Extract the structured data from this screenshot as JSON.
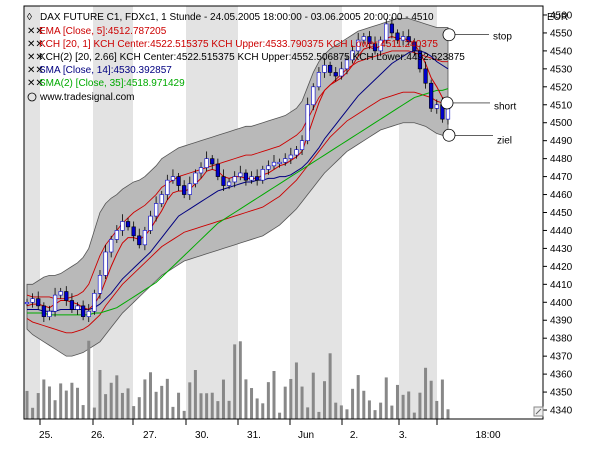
{
  "chart_data": {
    "type": "line",
    "title": "DAX FUTURE C1, FDXc1, 1 Stunde - 24.05.2005 18:00:00 - 03.06.2005 20:00:00 - 4510",
    "currency": "EUR",
    "watermark": "www.tradesignal.com",
    "legend_position": "top-left",
    "legend": [
      {
        "label": "EMA [Close, 5]:4512.787205",
        "color": "#cc0000"
      },
      {
        "label": "KCH [20, 1] KCH Center:4522.515375 KCH Upper:4533.790375 KCH Lower:4511.240375",
        "color": "#cc0000"
      },
      {
        "label": "KCH(2) [20, 2.66] KCH Center:4522.515375 KCH Upper:4552.506875 KCH Lower:4492.523875",
        "color": "#000000"
      },
      {
        "label": "SMA [Close, 14]:4530.392857",
        "color": "#000080"
      },
      {
        "label": "SMA(2) [Close, 35]:4518.971429",
        "color": "#00aa00"
      }
    ],
    "y_ticks": [
      4340,
      4350,
      4360,
      4370,
      4380,
      4390,
      4400,
      4410,
      4420,
      4430,
      4440,
      4450,
      4460,
      4470,
      4480,
      4490,
      4500,
      4510,
      4520,
      4530,
      4540,
      4550,
      4560
    ],
    "ylim": [
      4335,
      4565
    ],
    "x_ticks": [
      "25.",
      "26.",
      "27.",
      "30.",
      "31.",
      "Jun",
      "2.",
      "3.",
      "18:00"
    ],
    "grid": "off",
    "close_series": [
      4400,
      4402,
      4398,
      4392,
      4395,
      4404,
      4406,
      4401,
      4396,
      4398,
      4392,
      4395,
      4405,
      4415,
      4428,
      4435,
      4440,
      4445,
      4442,
      4437,
      4432,
      4440,
      4448,
      4455,
      4460,
      4468,
      4470,
      4465,
      4460,
      4466,
      4472,
      4475,
      4480,
      4477,
      4470,
      4465,
      4467,
      4470,
      4472,
      4468,
      4470,
      4468,
      4474,
      4476,
      4478,
      4478,
      4480,
      4482,
      4485,
      4490,
      4510,
      4520,
      4528,
      4532,
      4528,
      4526,
      4530,
      4535,
      4540,
      4546,
      4548,
      4544,
      4540,
      4546,
      4555,
      4550,
      4546,
      4548,
      4545,
      4540,
      4530,
      4522,
      4508,
      4510,
      4502,
      4510
    ],
    "ema5": [
      4398,
      4399,
      4399,
      4398,
      4397,
      4399,
      4401,
      4401,
      4400,
      4399,
      4397,
      4396,
      4399,
      4404,
      4412,
      4420,
      4427,
      4433,
      4436,
      4436,
      4435,
      4437,
      4441,
      4446,
      4451,
      4457,
      4461,
      4462,
      4462,
      4463,
      4466,
      4469,
      4473,
      4474,
      4473,
      4470,
      4469,
      4470,
      4470,
      4469,
      4469,
      4469,
      4471,
      4472,
      4474,
      4476,
      4477,
      4479,
      4481,
      4484,
      4493,
      4502,
      4511,
      4518,
      4521,
      4523,
      4525,
      4528,
      4532,
      4537,
      4541,
      4542,
      4541,
      4543,
      4547,
      4548,
      4547,
      4547,
      4546,
      4544,
      4539,
      4533,
      4525,
      4520,
      4514,
      4513
    ],
    "kch_upper_266": [
      4410,
      4410,
      4412,
      4414,
      4415,
      4415,
      4416,
      4418,
      4420,
      4422,
      4425,
      4430,
      4440,
      4450,
      4455,
      4458,
      4460,
      4463,
      4465,
      4467,
      4468,
      4470,
      4473,
      4476,
      4480,
      4482,
      4484,
      4486,
      4487,
      4488,
      4489,
      4490,
      4491,
      4492,
      4493,
      4494,
      4495,
      4496,
      4497,
      4498,
      4498,
      4499,
      4500,
      4501,
      4502,
      4503,
      4504,
      4506,
      4508,
      4512,
      4520,
      4528,
      4534,
      4538,
      4541,
      4543,
      4545,
      4547,
      4549,
      4551,
      4552,
      4553,
      4554,
      4555,
      4556,
      4557,
      4558,
      4558,
      4558,
      4557,
      4556,
      4555,
      4554,
      4553,
      4553,
      4553
    ],
    "kch_lower_266": [
      4385,
      4382,
      4380,
      4378,
      4376,
      4374,
      4372,
      4370,
      4370,
      4371,
      4372,
      4374,
      4376,
      4378,
      4382,
      4386,
      4390,
      4394,
      4397,
      4400,
      4403,
      4406,
      4409,
      4412,
      4415,
      4417,
      4419,
      4421,
      4423,
      4424,
      4425,
      4426,
      4427,
      4428,
      4429,
      4430,
      4431,
      4432,
      4433,
      4434,
      4435,
      4436,
      4437,
      4439,
      4441,
      4443,
      4446,
      4449,
      4452,
      4456,
      4460,
      4464,
      4468,
      4472,
      4475,
      4478,
      4481,
      4484,
      4486,
      4488,
      4490,
      4492,
      4494,
      4496,
      4497,
      4498,
      4499,
      4500,
      4500,
      4500,
      4499,
      4498,
      4496,
      4494,
      4493,
      4492
    ],
    "kch_upper_1": [
      4404,
      4403,
      4403,
      4403,
      4403,
      4402,
      4402,
      4402,
      4403,
      4404,
      4406,
      4410,
      4418,
      4426,
      4432,
      4436,
      4440,
      4444,
      4447,
      4450,
      4452,
      4454,
      4457,
      4460,
      4464,
      4466,
      4468,
      4470,
      4471,
      4472,
      4473,
      4474,
      4475,
      4476,
      4477,
      4478,
      4479,
      4480,
      4481,
      4482,
      4482,
      4483,
      4484,
      4485,
      4486,
      4487,
      4489,
      4491,
      4493,
      4496,
      4502,
      4508,
      4514,
      4518,
      4521,
      4524,
      4527,
      4530,
      4532,
      4534,
      4535,
      4536,
      4537,
      4538,
      4539,
      4540,
      4540,
      4540,
      4540,
      4539,
      4538,
      4537,
      4536,
      4535,
      4534,
      4534
    ],
    "kch_lower_1": [
      4391,
      4389,
      4388,
      4387,
      4386,
      4385,
      4384,
      4383,
      4383,
      4384,
      4385,
      4387,
      4390,
      4393,
      4398,
      4402,
      4406,
      4410,
      4413,
      4416,
      4419,
      4422,
      4425,
      4428,
      4431,
      4433,
      4435,
      4437,
      4439,
      4440,
      4441,
      4442,
      4443,
      4444,
      4445,
      4446,
      4447,
      4448,
      4449,
      4450,
      4451,
      4452,
      4453,
      4455,
      4457,
      4459,
      4462,
      4465,
      4468,
      4472,
      4476,
      4480,
      4484,
      4488,
      4492,
      4495,
      4498,
      4501,
      4503,
      4505,
      4507,
      4509,
      4511,
      4513,
      4514,
      4515,
      4516,
      4517,
      4517,
      4517,
      4516,
      4515,
      4514,
      4512,
      4511,
      4511
    ],
    "sma14": [
      4396,
      4396,
      4396,
      4395,
      4395,
      4395,
      4396,
      4396,
      4396,
      4396,
      4396,
      4396,
      4397,
      4399,
      4402,
      4405,
      4409,
      4413,
      4416,
      4419,
      4422,
      4425,
      4428,
      4432,
      4436,
      4440,
      4444,
      4448,
      4450,
      4452,
      4454,
      4456,
      4458,
      4460,
      4462,
      4463,
      4464,
      4465,
      4466,
      4467,
      4467,
      4468,
      4468,
      4469,
      4469,
      4470,
      4470,
      4471,
      4473,
      4475,
      4478,
      4482,
      4486,
      4491,
      4495,
      4499,
      4503,
      4507,
      4511,
      4515,
      4518,
      4521,
      4524,
      4527,
      4530,
      4533,
      4535,
      4537,
      4539,
      4540,
      4540,
      4539,
      4537,
      4534,
      4532,
      4530
    ],
    "sma35": [
      4394,
      4394,
      4394,
      4394,
      4393,
      4393,
      4393,
      4393,
      4393,
      4393,
      4393,
      4393,
      4394,
      4394,
      4395,
      4396,
      4397,
      4399,
      4401,
      4403,
      4405,
      4407,
      4409,
      4411,
      4414,
      4417,
      4420,
      4423,
      4426,
      4429,
      4432,
      4435,
      4438,
      4441,
      4444,
      4446,
      4448,
      4450,
      4452,
      4454,
      4456,
      4458,
      4460,
      4462,
      4464,
      4466,
      4468,
      4470,
      4472,
      4474,
      4476,
      4478,
      4480,
      4482,
      4484,
      4486,
      4488,
      4490,
      4492,
      4494,
      4496,
      4498,
      4500,
      4502,
      4504,
      4506,
      4508,
      4510,
      4512,
      4514,
      4515,
      4516,
      4517,
      4518,
      4518,
      4519
    ],
    "annotations": [
      {
        "text": "stop",
        "price": 4549
      },
      {
        "text": "short",
        "price": 4510
      },
      {
        "text": "ziel",
        "price": 4494
      }
    ]
  }
}
